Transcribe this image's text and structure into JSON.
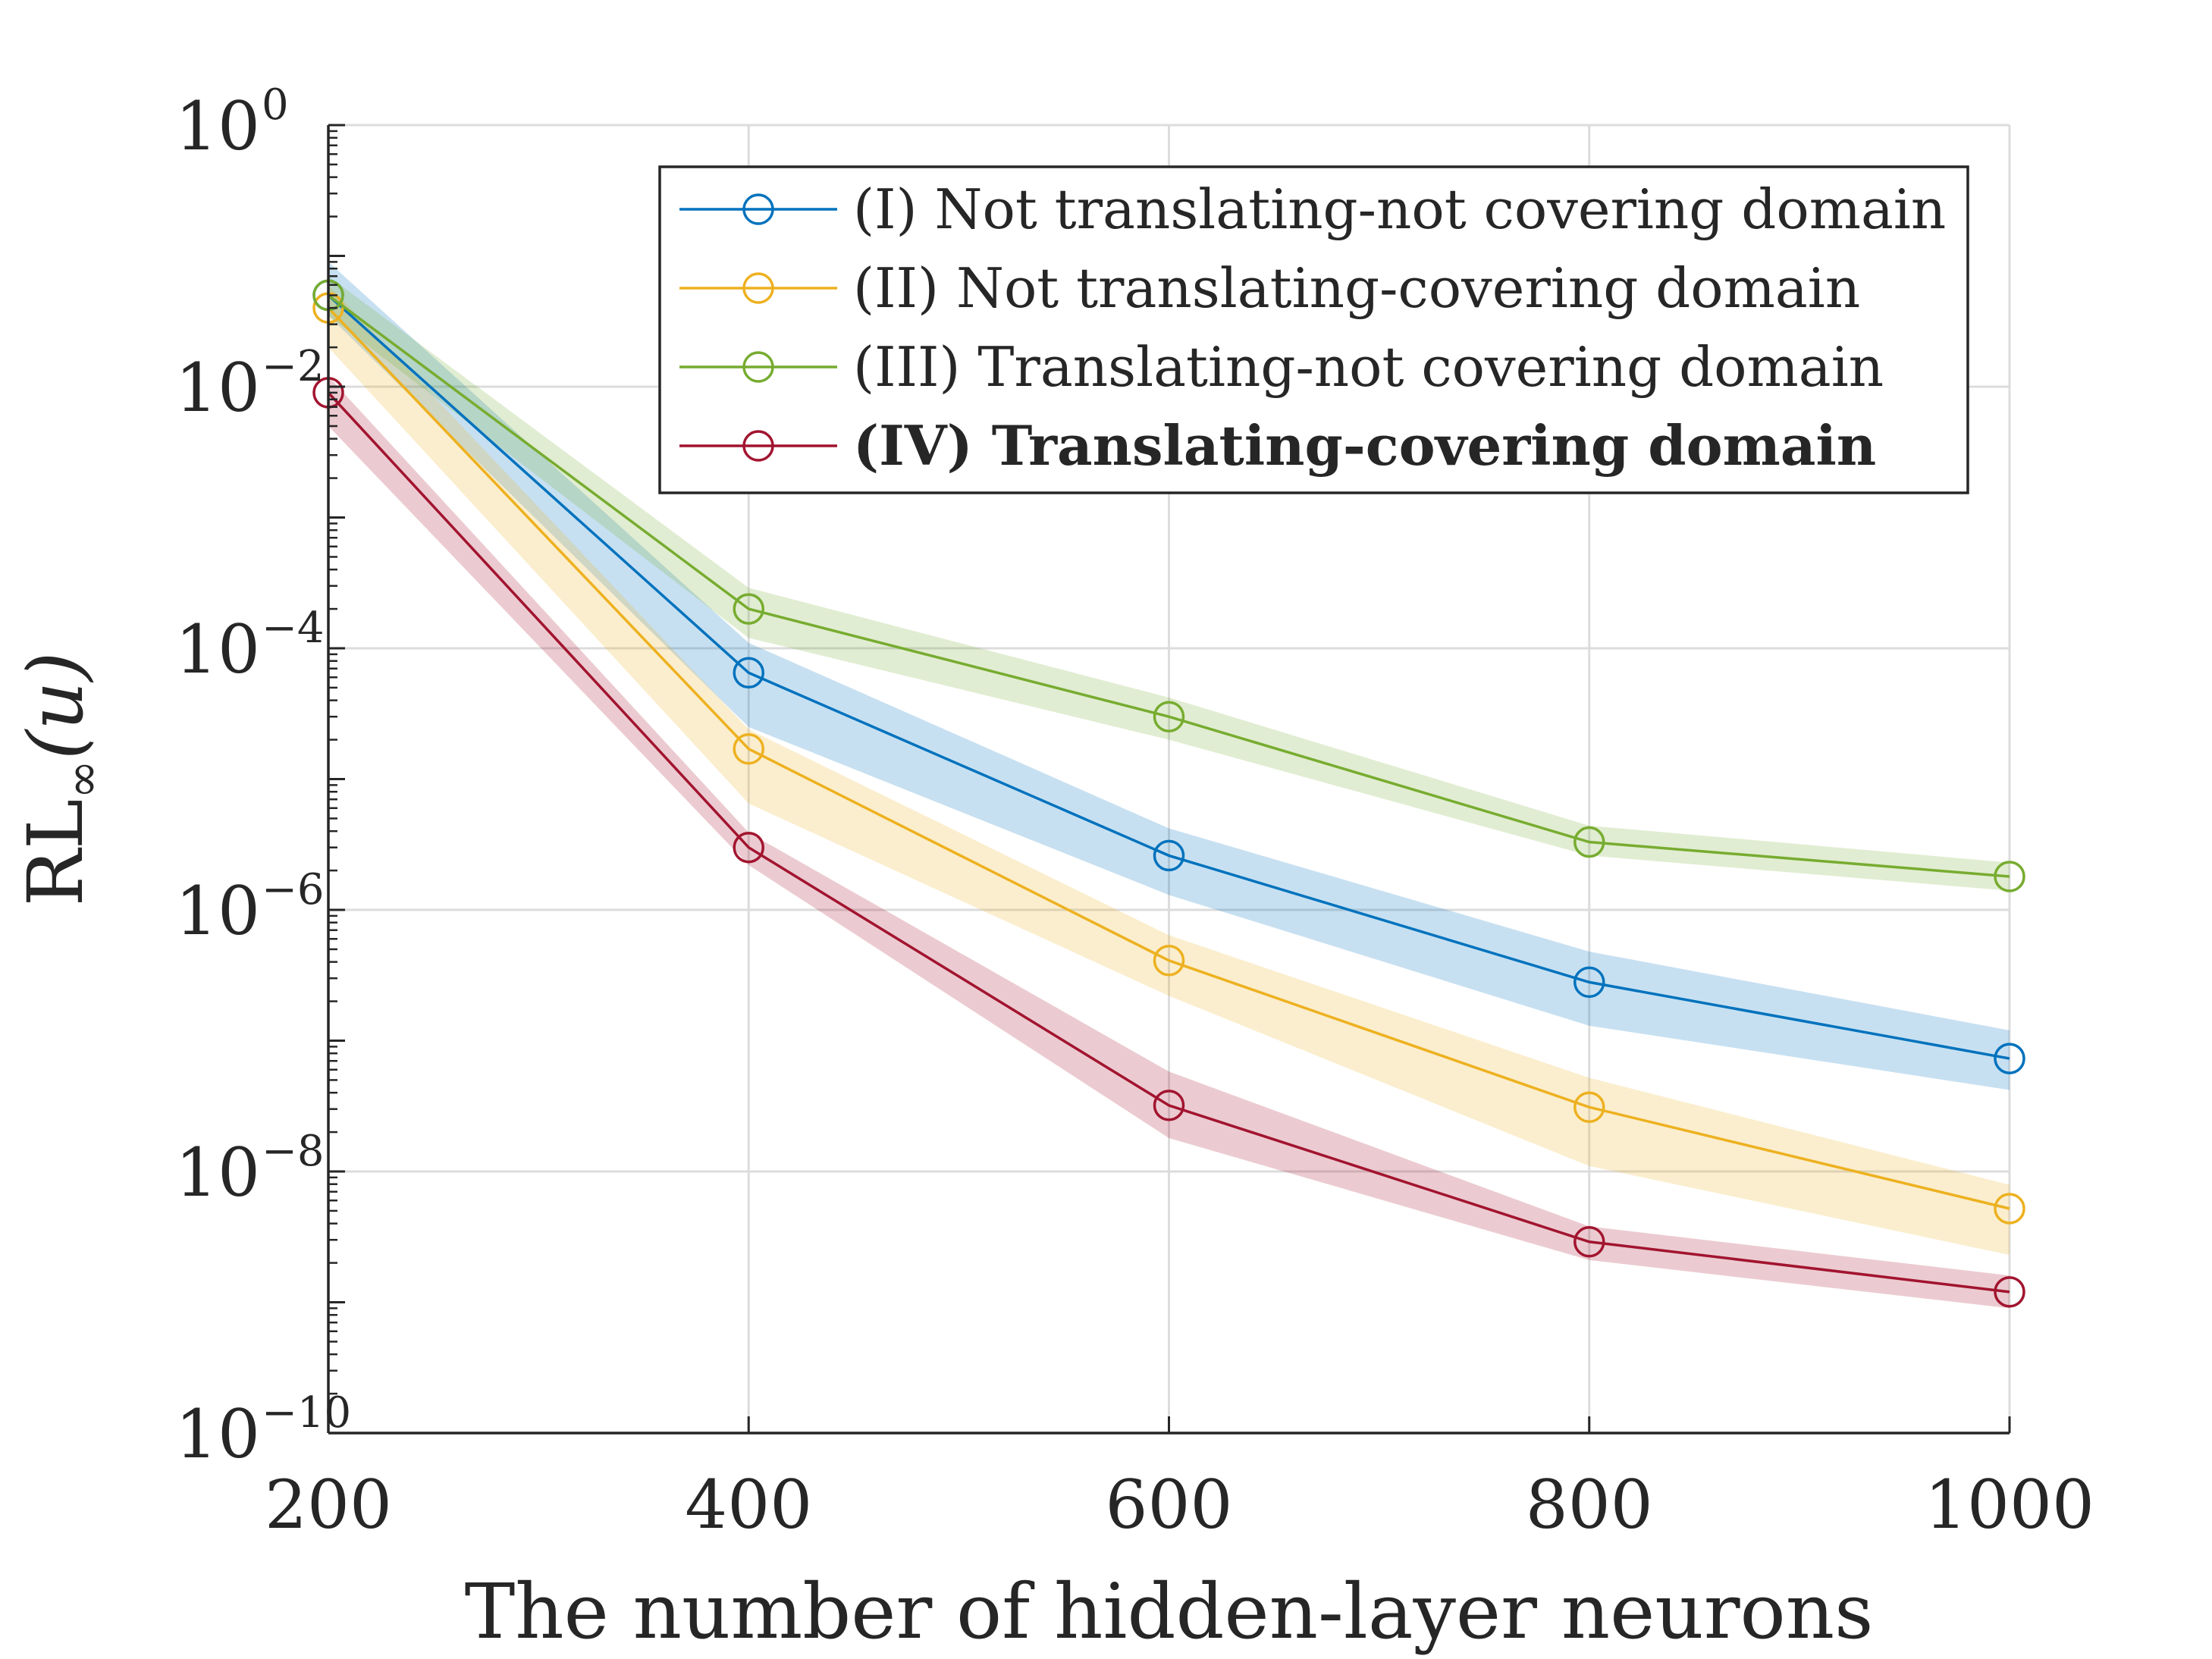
{
  "chart_data": {
    "type": "line",
    "xlabel": "The number of hidden-layer neurons",
    "ylabel": {
      "main": "RL",
      "subscript": "∞",
      "suffix": "(u)"
    },
    "xscale": "linear",
    "yscale": "log",
    "xlim": [
      200,
      1000
    ],
    "ylim": [
      1e-10,
      1
    ],
    "grid": true,
    "legend_location": "top-right",
    "x_ticks": [
      200,
      400,
      600,
      800,
      1000
    ],
    "x_tick_labels": [
      "200",
      "400",
      "600",
      "800",
      "1000"
    ],
    "y_ticks": [
      {
        "base": "10",
        "exp": "0",
        "value": 1
      },
      {
        "base": "10",
        "exp": "−2",
        "value": 0.01
      },
      {
        "base": "10",
        "exp": "−4",
        "value": 0.0001
      },
      {
        "base": "10",
        "exp": "−6",
        "value": 1e-06
      },
      {
        "base": "10",
        "exp": "−8",
        "value": 1e-08
      },
      {
        "base": "10",
        "exp": "−10",
        "value": 1e-10
      }
    ],
    "x": [
      200,
      400,
      600,
      800,
      1000
    ],
    "series": [
      {
        "name": "(I) Not translating-not covering domain",
        "color": "#0072BD",
        "bold": false,
        "values": [
          0.05,
          6.5e-05,
          2.6e-06,
          2.8e-07,
          7.3e-08
        ],
        "lower": [
          0.035,
          2.5e-05,
          1.3e-06,
          1.3e-07,
          4.2e-08
        ],
        "upper": [
          0.09,
          0.00011,
          4.2e-06,
          4.8e-07,
          1.2e-07
        ]
      },
      {
        "name": "(II) Not translating-covering domain",
        "color": "#EDB120",
        "bold": false,
        "values": [
          0.04,
          1.7e-05,
          4.1e-07,
          3.1e-08,
          5.2e-09
        ],
        "lower": [
          0.02,
          6.5e-06,
          2.2e-07,
          1.1e-08,
          2.3e-09
        ],
        "upper": [
          0.06,
          2.4e-05,
          6.4e-07,
          5.2e-08,
          7.9e-09
        ]
      },
      {
        "name": "(III) Translating-not covering domain",
        "color": "#77AC30",
        "bold": false,
        "values": [
          0.05,
          0.0002,
          3e-05,
          3.3e-06,
          1.8e-06
        ],
        "lower": [
          0.035,
          0.00012,
          2e-05,
          2.6e-06,
          1.4e-06
        ],
        "upper": [
          0.07,
          0.00029,
          4.2e-05,
          4.4e-06,
          2.3e-06
        ]
      },
      {
        "name": "(IV) Translating-covering domain",
        "color": "#A2142F",
        "bold": true,
        "values": [
          0.009,
          3e-06,
          3.2e-08,
          2.9e-09,
          1.2e-09
        ],
        "lower": [
          0.005,
          2.2e-06,
          1.8e-08,
          2.1e-09,
          9e-10
        ],
        "upper": [
          0.012,
          3.9e-06,
          5.8e-08,
          3.8e-09,
          1.6e-09
        ]
      }
    ]
  }
}
